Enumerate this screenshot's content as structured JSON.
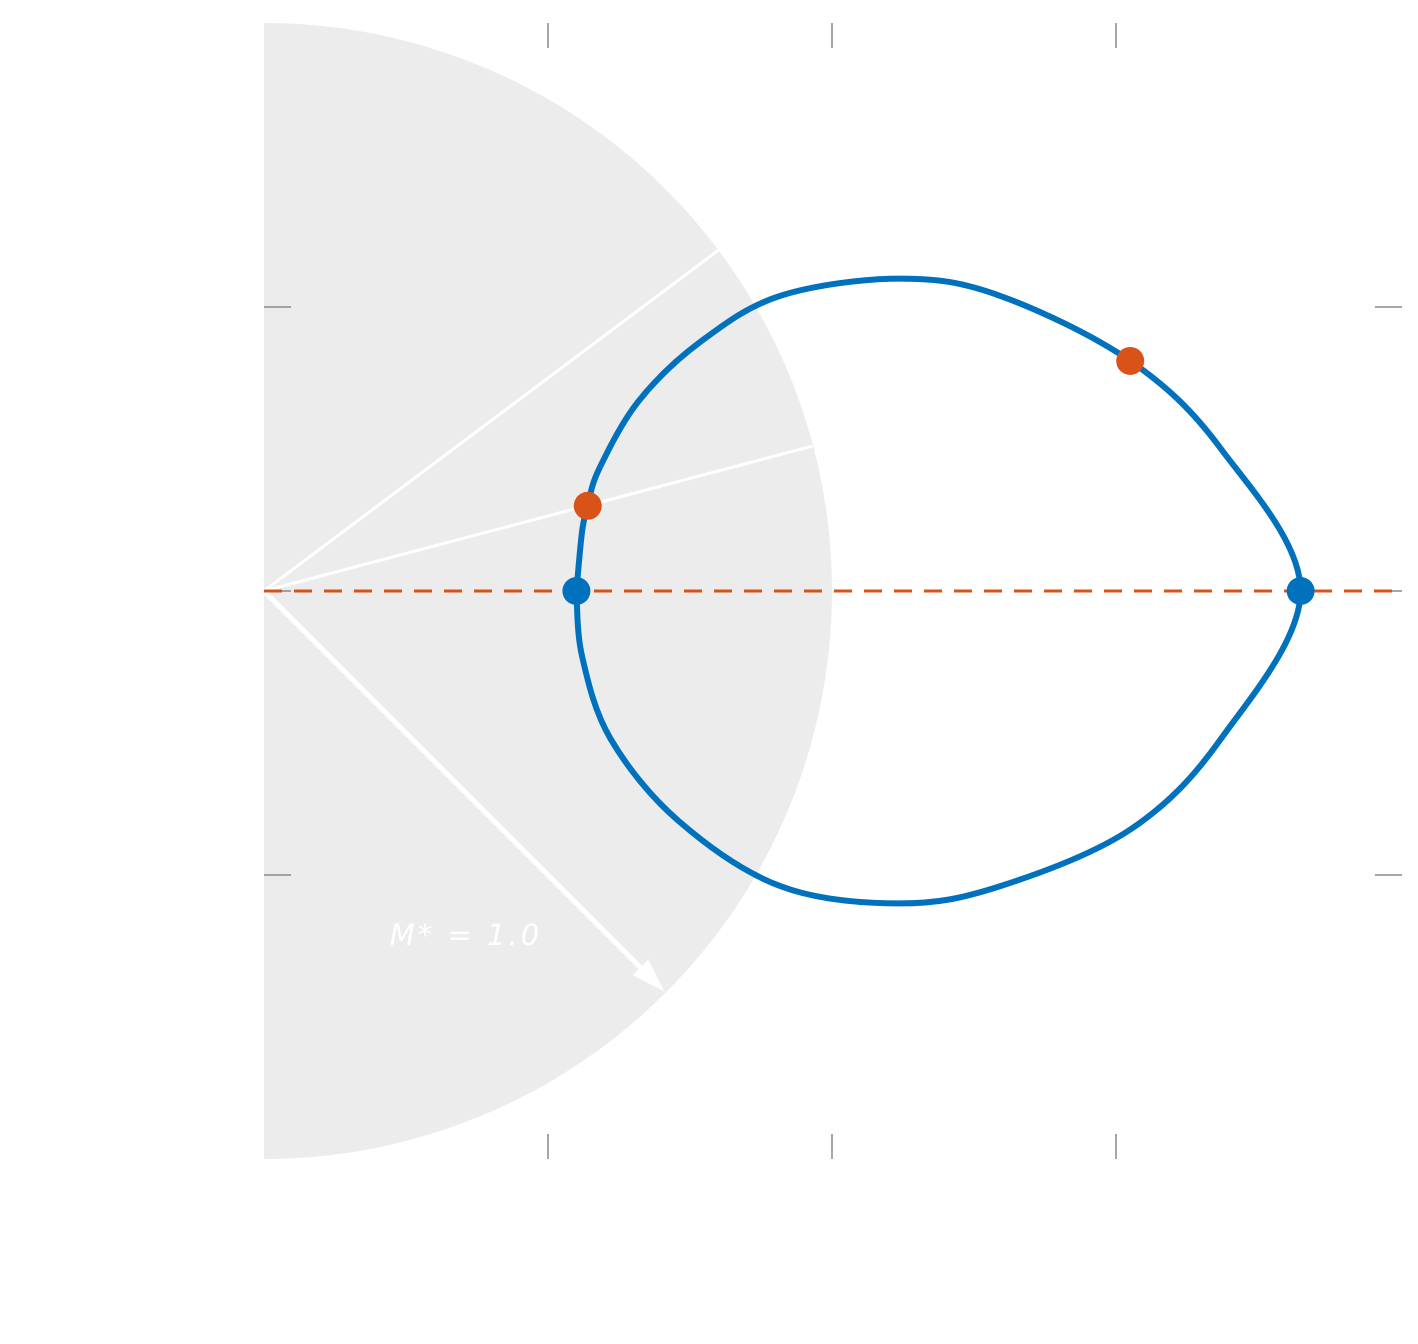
{
  "chart_data": {
    "type": "line",
    "xlim": [
      0,
      4
    ],
    "ylim": [
      -2,
      2
    ],
    "xticks": [
      1,
      2,
      3
    ],
    "yticks": [
      -1,
      0,
      1
    ],
    "region": {
      "radius": 2.0,
      "color": "#ececec",
      "label": "M* = 1.0"
    },
    "rays": {
      "color": "#ffffff",
      "x": [
        1.6,
        1.93
      ],
      "y": [
        1.2,
        0.51
      ]
    },
    "arrow": {
      "x": 1.41,
      "y": -1.41,
      "color": "#ffffff"
    },
    "baseline": {
      "y": 0,
      "color": "#d95319"
    },
    "curve": {
      "color": "#0072bd",
      "x": [
        1.1,
        1.12,
        1.14,
        1.18,
        1.32,
        1.54,
        1.82,
        2.24,
        2.59,
        3.05,
        3.37,
        3.65,
        3.37,
        3.05,
        2.59,
        2.24,
        1.82,
        1.46,
        1.22,
        1.12,
        1.1
      ],
      "y": [
        0,
        0.21,
        0.3,
        0.43,
        0.67,
        0.88,
        1.04,
        1.1,
        1.04,
        0.81,
        0.5,
        0,
        -0.52,
        -0.84,
        -1.04,
        -1.1,
        -1.04,
        -0.81,
        -0.52,
        -0.23,
        0
      ]
    },
    "points": [
      {
        "x": 1.1,
        "y": 0,
        "color": "#0072bd"
      },
      {
        "x": 3.65,
        "y": 0,
        "color": "#0072bd"
      },
      {
        "x": 1.14,
        "y": 0.3,
        "color": "#d95319"
      },
      {
        "x": 3.05,
        "y": 0.81,
        "color": "#d95319"
      }
    ]
  }
}
